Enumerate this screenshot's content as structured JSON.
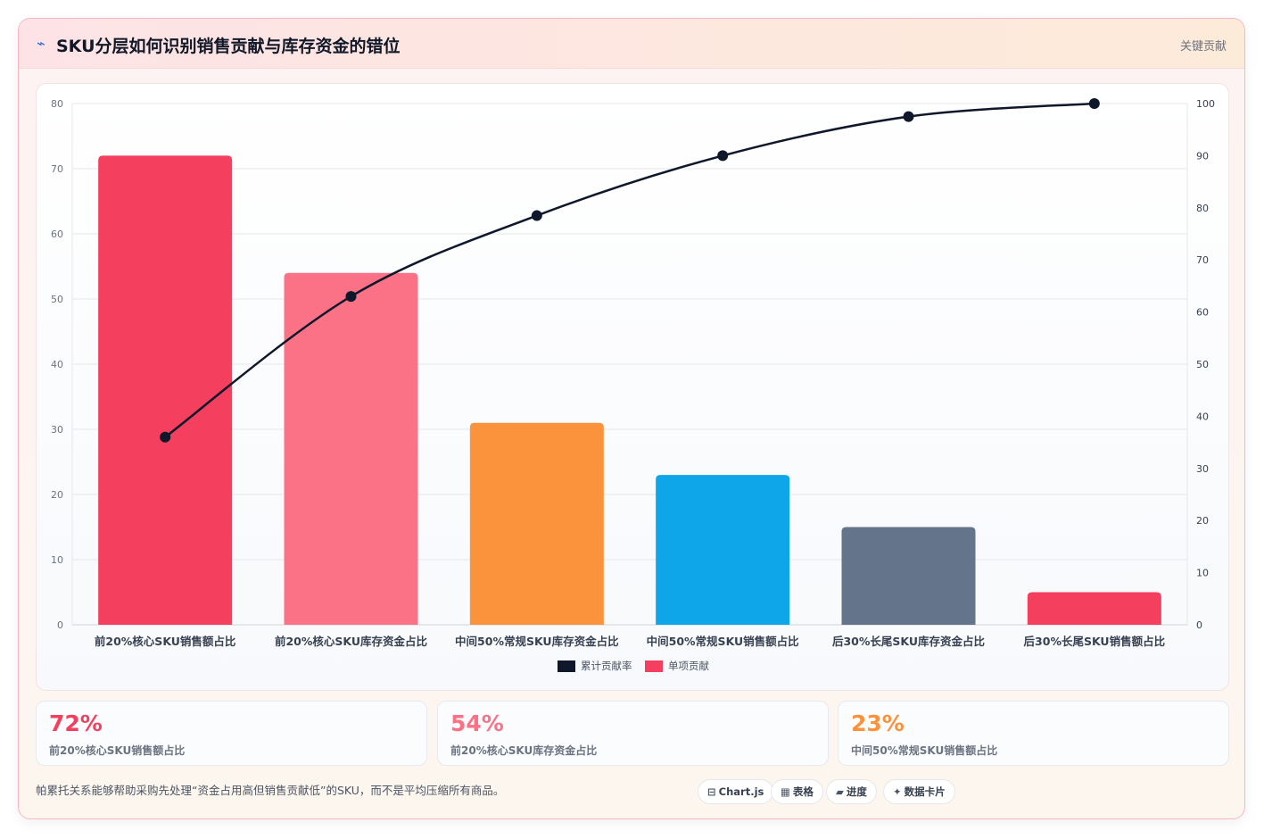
{
  "header": {
    "icon": "chart-icon",
    "title": "SKU分层如何识别销售贡献与库存资金的错位",
    "tag": "关键贡献"
  },
  "chart_data": {
    "type": "bar",
    "categories": [
      "前20%核心SKU销售额占比",
      "前20%核心SKU库存资金占比",
      "中间50%常规SKU库存资金占比",
      "中间50%常规SKU销售额占比",
      "后30%长尾SKU库存资金占比",
      "后30%长尾SKU销售额占比"
    ],
    "series": [
      {
        "name": "单项贡献",
        "type": "bar",
        "axis": "left",
        "values": [
          72,
          54,
          31,
          23,
          15,
          5
        ],
        "colors": [
          "#f43f5e",
          "#fb7185",
          "#fb923c",
          "#0ea5e9",
          "#64748b",
          "#f43f5e"
        ]
      },
      {
        "name": "累计贡献率",
        "type": "line",
        "axis": "right",
        "values": [
          36,
          63,
          78.5,
          90,
          97.5,
          100
        ],
        "color": "#0f172a"
      }
    ],
    "ylim": [
      0,
      80
    ],
    "y_ticks": [
      0,
      10,
      20,
      30,
      40,
      50,
      60,
      70,
      80
    ],
    "y2lim": [
      0,
      100
    ],
    "y2_ticks": [
      0,
      10,
      20,
      30,
      40,
      50,
      60,
      70,
      80,
      90,
      100
    ],
    "legend": {
      "position": "bottom",
      "items": [
        {
          "label": "累计贡献率",
          "color": "#0f172a"
        },
        {
          "label": "单项贡献",
          "color": "#f43f5e"
        }
      ]
    },
    "grid": true
  },
  "stats": [
    {
      "value": "72%",
      "label": "前20%核心SKU销售额占比",
      "color": "#f43f5e"
    },
    {
      "value": "54%",
      "label": "前20%核心SKU库存资金占比",
      "color": "#fb7185"
    },
    {
      "value": "23%",
      "label": "中间50%常规SKU销售额占比",
      "color": "#fb923c"
    }
  ],
  "footer": {
    "note": "帕累托关系能够帮助采购先处理“资金占用高但销售贡献低”的SKU，而不是平均压缩所有商品。",
    "pills": [
      {
        "icon": "chart-icon",
        "glyph": "⊟",
        "label": "Chart.js"
      },
      {
        "icon": "table-icon",
        "glyph": "▦",
        "label": "表格"
      },
      {
        "icon": "progress-icon",
        "glyph": "▰",
        "label": "进度"
      },
      {
        "icon": "data-card-icon",
        "glyph": "✦",
        "label": "数据卡片"
      }
    ]
  }
}
